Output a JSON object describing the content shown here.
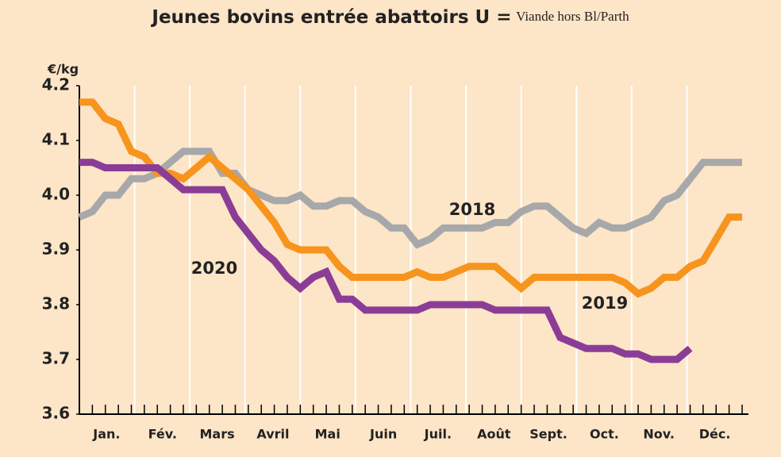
{
  "chart_data": {
    "type": "line",
    "title": "Jeunes bovins entrée abattoirs U =",
    "subtitle": "Viande hors Bl/Parth",
    "y_label": "€/kg",
    "x": [
      1,
      2,
      3,
      4,
      5,
      6,
      7,
      8,
      9,
      10,
      11,
      12,
      13,
      14,
      15,
      16,
      17,
      18,
      19,
      20,
      21,
      22,
      23,
      24,
      25,
      26,
      27,
      28,
      29,
      30,
      31,
      32,
      33,
      34,
      35,
      36,
      37,
      38,
      39,
      40,
      41,
      42,
      43,
      44,
      45,
      46,
      47,
      48,
      49,
      50,
      51,
      52
    ],
    "xlim": [
      1,
      52
    ],
    "xticks": [
      {
        "value": 3.1,
        "label": "Jan."
      },
      {
        "value": 7.4,
        "label": "Fév."
      },
      {
        "value": 11.6,
        "label": "Mars"
      },
      {
        "value": 15.9,
        "label": "Avril"
      },
      {
        "value": 20.1,
        "label": "Mai"
      },
      {
        "value": 24.4,
        "label": "Juin"
      },
      {
        "value": 28.6,
        "label": "Juil."
      },
      {
        "value": 32.9,
        "label": "Août"
      },
      {
        "value": 37.1,
        "label": "Sept."
      },
      {
        "value": 41.4,
        "label": "Oct."
      },
      {
        "value": 45.6,
        "label": "Nov."
      },
      {
        "value": 49.9,
        "label": "Déc."
      }
    ],
    "ylim": [
      3.6,
      4.2
    ],
    "yticks": [
      3.6,
      3.7,
      3.8,
      3.9,
      {
        "value": 4.0,
        "label": "4.0"
      },
      4.1,
      4.2
    ],
    "grid": false,
    "series": [
      {
        "name": "2018",
        "color": "#a7a8aa",
        "values": [
          3.96,
          3.97,
          4.0,
          4.0,
          4.03,
          4.03,
          4.04,
          4.06,
          4.08,
          4.08,
          4.08,
          4.04,
          4.04,
          4.01,
          4.0,
          3.99,
          3.99,
          4.0,
          3.98,
          3.98,
          3.99,
          3.99,
          3.97,
          3.96,
          3.94,
          3.94,
          3.91,
          3.92,
          3.94,
          3.94,
          3.94,
          3.94,
          3.95,
          3.95,
          3.97,
          3.98,
          3.98,
          3.96,
          3.94,
          3.93,
          3.95,
          3.94,
          3.94,
          3.95,
          3.96,
          3.99,
          4.0,
          4.03,
          4.06,
          4.06,
          4.06,
          4.06
        ]
      },
      {
        "name": "2019",
        "color": "#f7941d",
        "values": [
          4.17,
          4.17,
          4.14,
          4.13,
          4.08,
          4.07,
          4.04,
          4.04,
          4.03,
          4.05,
          4.07,
          4.05,
          4.03,
          4.01,
          3.98,
          3.95,
          3.91,
          3.9,
          3.9,
          3.9,
          3.87,
          3.85,
          3.85,
          3.85,
          3.85,
          3.85,
          3.86,
          3.85,
          3.85,
          3.86,
          3.87,
          3.87,
          3.87,
          3.85,
          3.83,
          3.85,
          3.85,
          3.85,
          3.85,
          3.85,
          3.85,
          3.85,
          3.84,
          3.82,
          3.83,
          3.85,
          3.85,
          3.87,
          3.88,
          3.92,
          3.96,
          3.96
        ]
      },
      {
        "name": "2020",
        "color": "#8b3d96",
        "values": [
          4.06,
          4.06,
          4.05,
          4.05,
          4.05,
          4.05,
          4.05,
          4.03,
          4.01,
          4.01,
          4.01,
          4.01,
          3.96,
          3.93,
          3.9,
          3.88,
          3.85,
          3.83,
          3.85,
          3.86,
          3.81,
          3.81,
          3.79,
          3.79,
          3.79,
          3.79,
          3.79,
          3.8,
          3.8,
          3.8,
          3.8,
          3.8,
          3.79,
          3.79,
          3.79,
          3.79,
          3.79,
          3.74,
          3.73,
          3.72,
          3.72,
          3.72,
          3.71,
          3.71,
          3.7,
          3.7,
          3.7,
          3.72,
          null,
          null,
          null,
          null
        ]
      }
    ]
  }
}
